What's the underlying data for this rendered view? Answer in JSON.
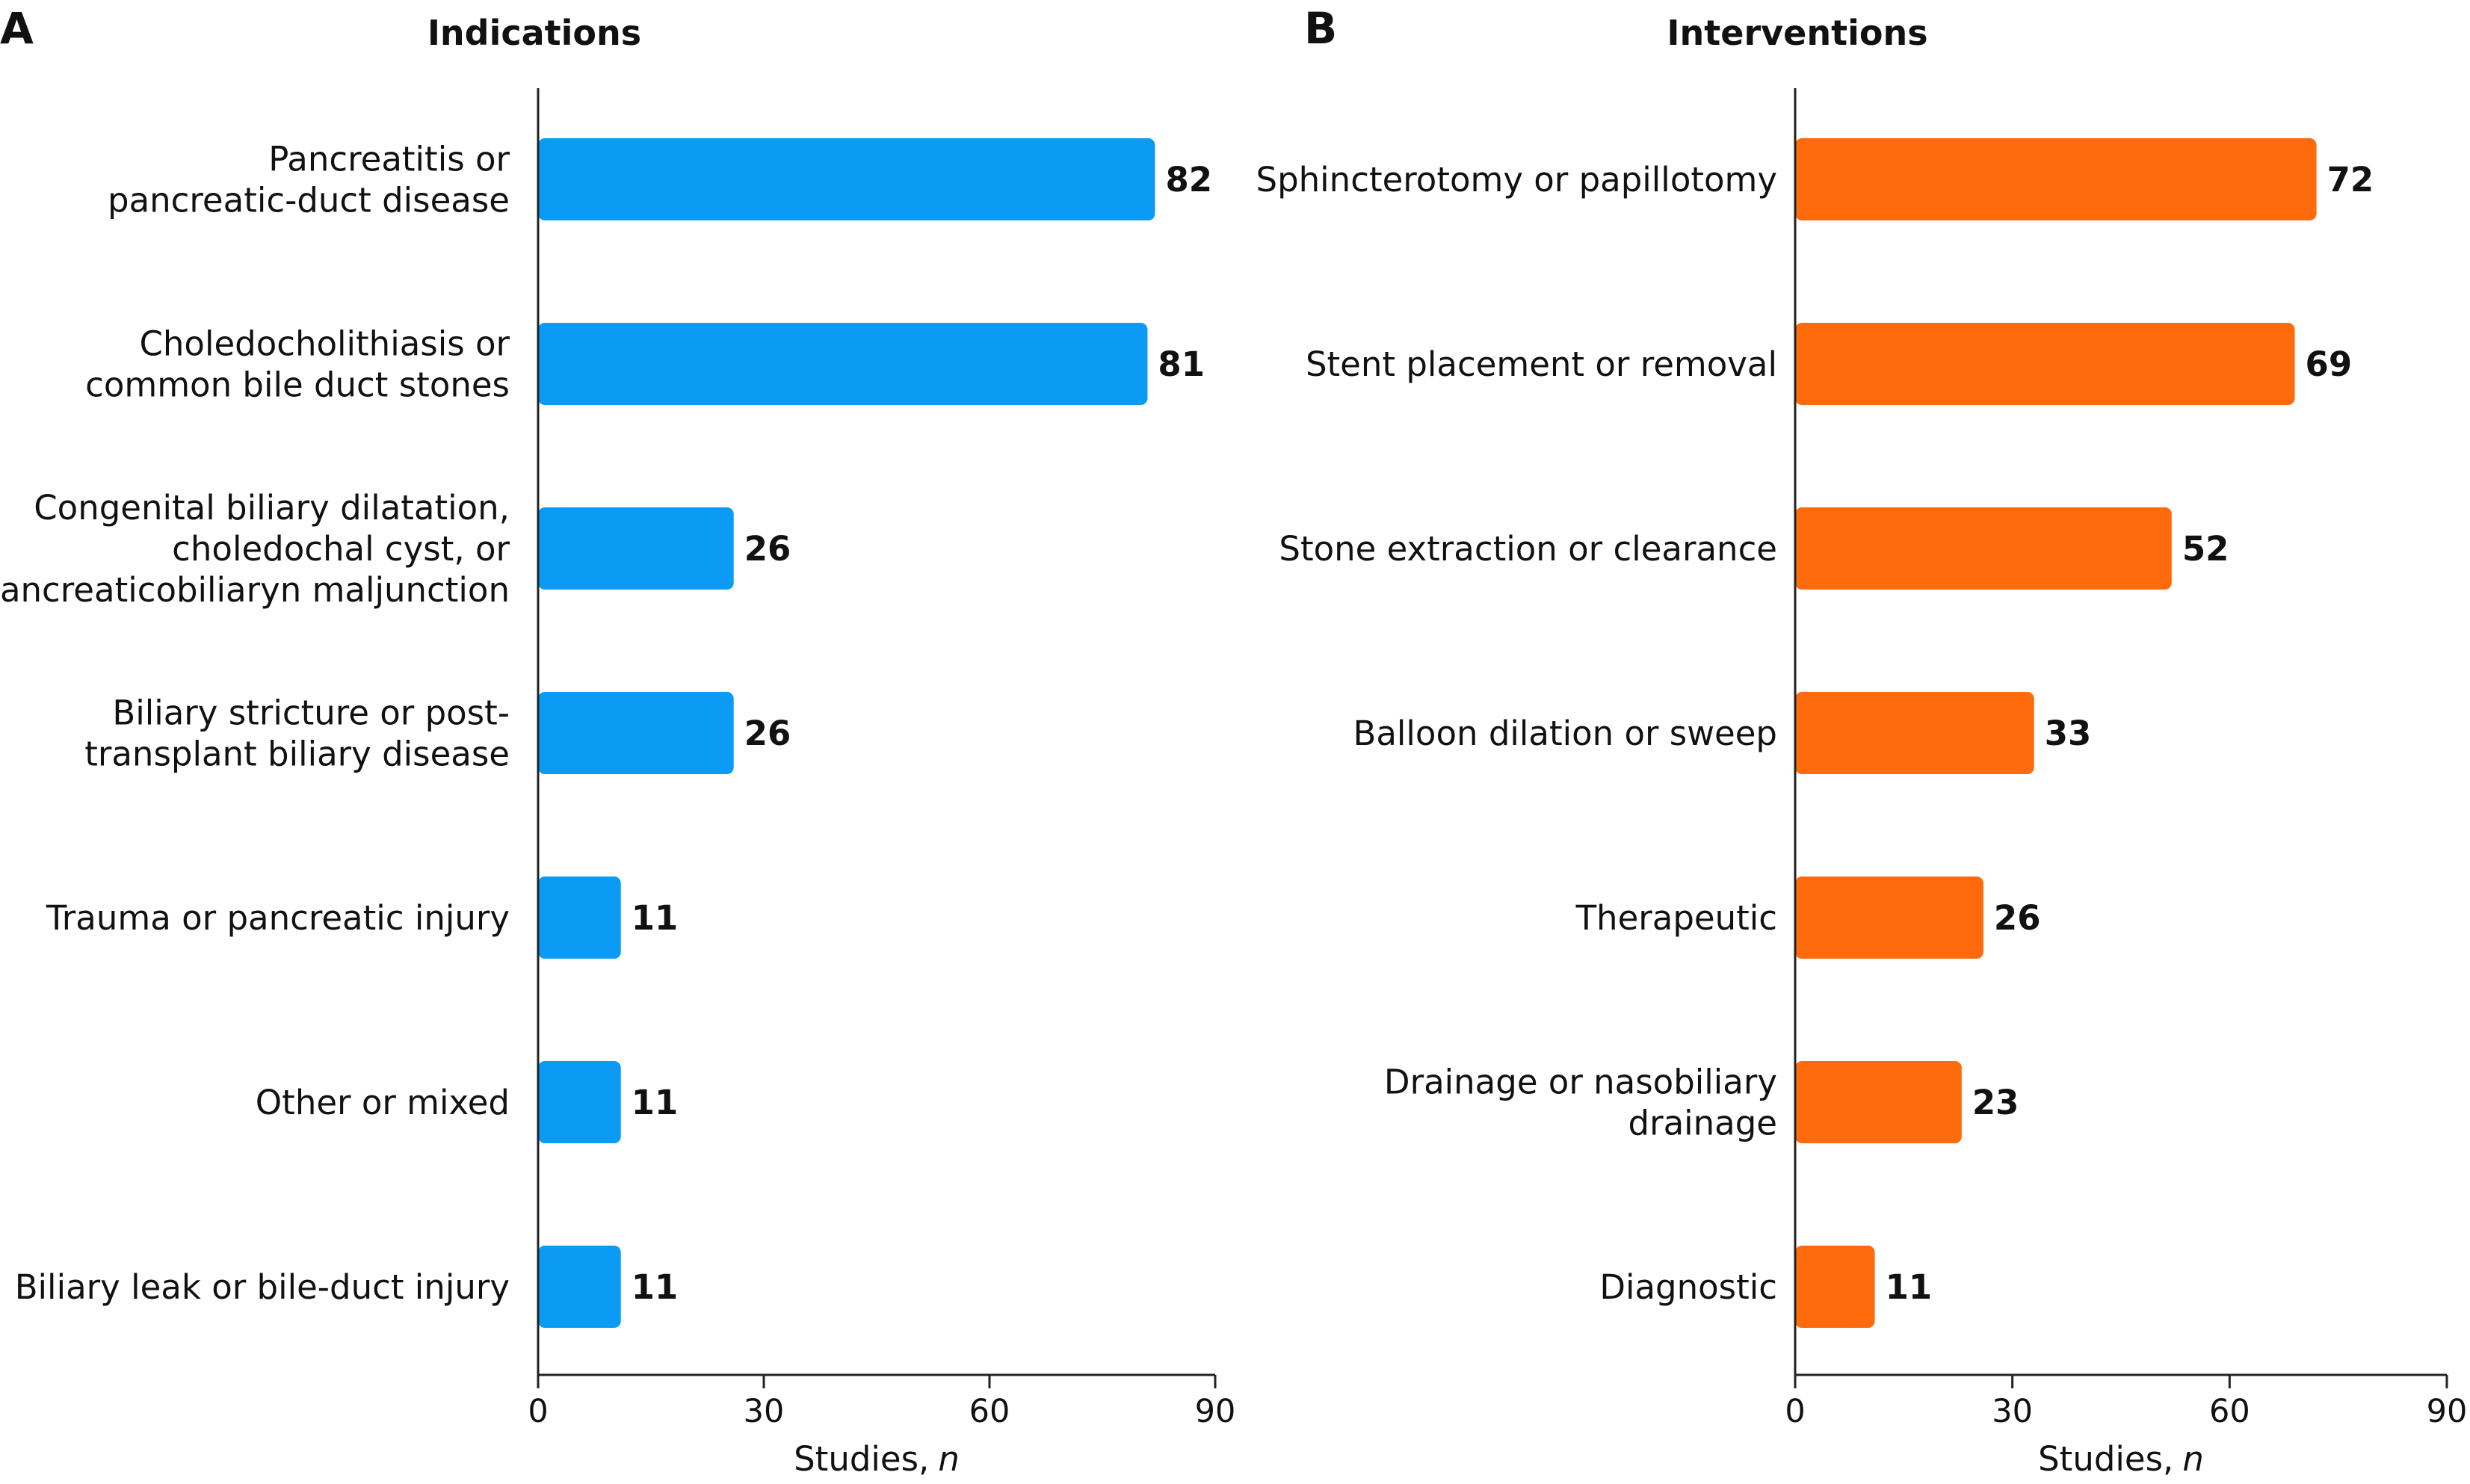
{
  "chart_data": [
    {
      "type": "bar",
      "orientation": "horizontal",
      "panel": "A",
      "title": "Indications",
      "categories": [
        [
          "Pancreatitis or",
          "pancreatic-duct disease"
        ],
        [
          "Choledocholithiasis or",
          "common bile duct stones"
        ],
        [
          "Congenital biliary dilatation,",
          "choledochal cyst, or",
          "pancreaticobiliaryn maljunction"
        ],
        [
          "Biliary stricture or post-",
          "transplant biliary disease"
        ],
        [
          "Trauma or pancreatic injury"
        ],
        [
          "Other or mixed"
        ],
        [
          "Biliary leak or bile-duct injury"
        ]
      ],
      "values": [
        82,
        81,
        26,
        26,
        11,
        11,
        11
      ],
      "xlabel": "Studies,",
      "xlabel_italic": "n",
      "xlim": [
        0,
        90
      ],
      "xticks": [
        0,
        30,
        60,
        90
      ],
      "color": "#0B9BF5",
      "grid": false
    },
    {
      "type": "bar",
      "orientation": "horizontal",
      "panel": "B",
      "title": "Interventions",
      "categories": [
        [
          "Sphincterotomy or papillotomy"
        ],
        [
          "Stent placement or removal"
        ],
        [
          "Stone extraction or clearance"
        ],
        [
          "Balloon dilation or sweep"
        ],
        [
          "Therapeutic"
        ],
        [
          "Drainage or nasobiliary",
          "drainage"
        ],
        [
          "Diagnostic"
        ]
      ],
      "values": [
        72,
        69,
        52,
        33,
        26,
        23,
        11
      ],
      "xlabel": "Studies,",
      "xlabel_italic": "n",
      "xlim": [
        0,
        90
      ],
      "xticks": [
        0,
        30,
        60,
        90
      ],
      "color": "#FF6A0D",
      "grid": false
    }
  ]
}
